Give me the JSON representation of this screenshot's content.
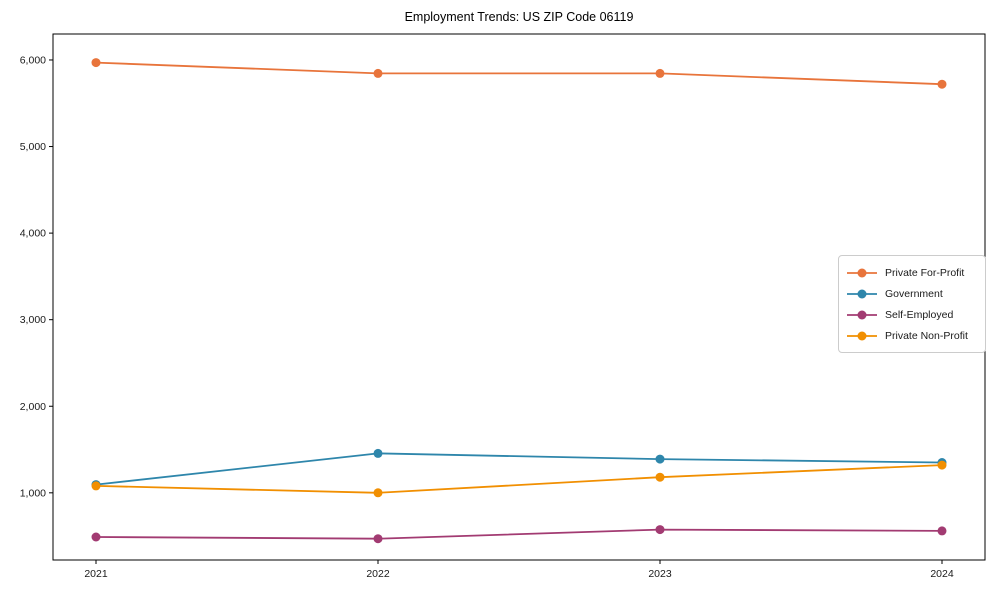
{
  "chart_data": {
    "type": "line",
    "title": "Employment Trends: US ZIP Code 06119",
    "xlabel": "",
    "ylabel": "",
    "categories": [
      "2021",
      "2022",
      "2023",
      "2024"
    ],
    "series": [
      {
        "name": "Private For-Profit",
        "color": "#E8743B",
        "values": [
          5970,
          5845,
          5845,
          5720
        ]
      },
      {
        "name": "Government",
        "color": "#2E86AB",
        "values": [
          1095,
          1455,
          1390,
          1350
        ]
      },
      {
        "name": "Self-Employed",
        "color": "#A23B72",
        "values": [
          490,
          470,
          575,
          560
        ]
      },
      {
        "name": "Private Non-Profit",
        "color": "#F18F01",
        "values": [
          1080,
          1000,
          1180,
          1320
        ]
      }
    ],
    "yticks": [
      1000,
      2000,
      3000,
      4000,
      5000,
      6000
    ],
    "ytick_labels": [
      "1,000",
      "2,000",
      "3,000",
      "4,000",
      "5,000",
      "6,000"
    ],
    "ylim": [
      224,
      6300
    ],
    "grid": false,
    "legend_position": "center-right",
    "marker": "circle",
    "axis_color": "#000000",
    "tick_label_color": "#1a1a1a"
  }
}
